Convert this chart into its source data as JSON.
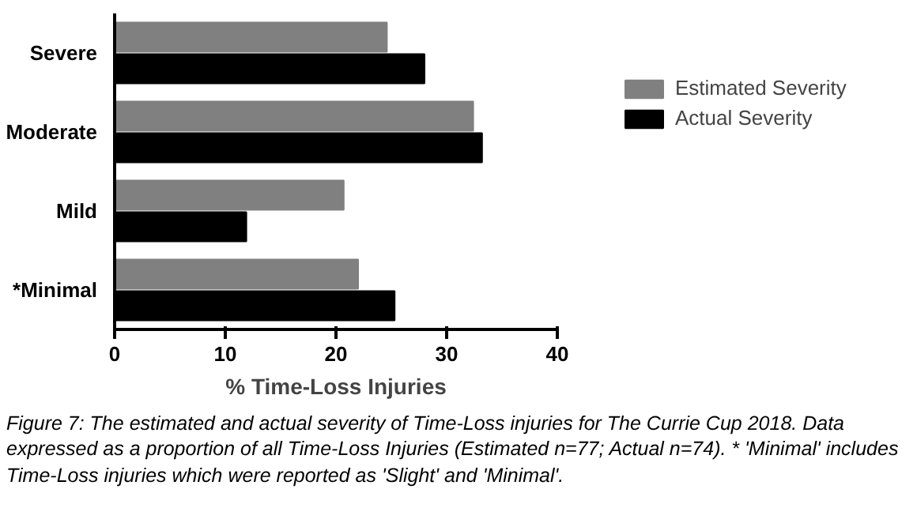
{
  "chart_data": {
    "type": "bar",
    "orientation": "horizontal",
    "xlabel": "% Time-Loss Injuries",
    "categories": [
      "Severe",
      "Moderate",
      "Mild",
      "*Minimal"
    ],
    "series": [
      {
        "name": "Estimated Severity",
        "color": "#808080",
        "values": [
          24.6,
          32.4,
          20.7,
          22.0
        ]
      },
      {
        "name": "Actual Severity",
        "color": "#000000",
        "values": [
          28.0,
          33.2,
          11.9,
          25.3
        ]
      }
    ],
    "xlim": [
      0,
      40
    ],
    "xticks": [
      0,
      10,
      20,
      30,
      40
    ],
    "grid": false,
    "legend": "top right",
    "annotations": [
      "Figure 7: The estimated and actual severity of Time-Loss injuries for The Currie Cup 2018. Data expressed as a proportion of all Time-Loss Injuries (Estimated n=77; Actual n=74). * 'Minimal' includes Time-Loss injuries which were reported as 'Slight' and 'Minimal'."
    ]
  }
}
